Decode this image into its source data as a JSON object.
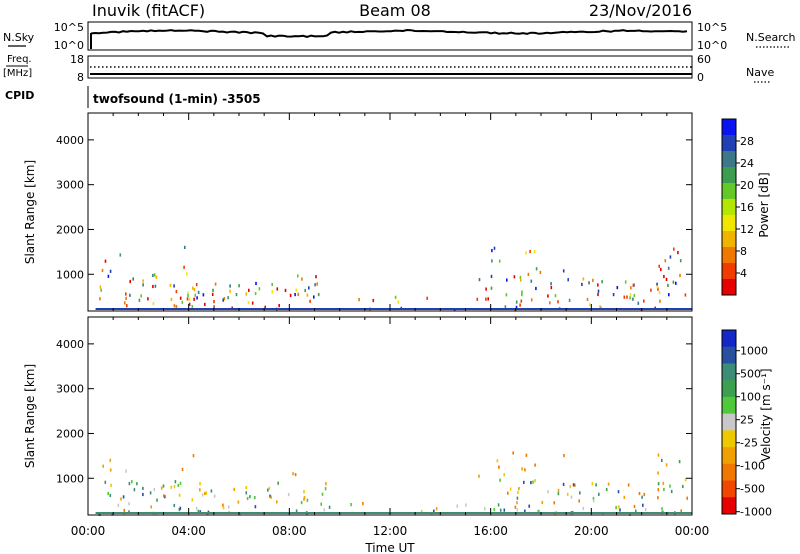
{
  "header": {
    "station": "Inuvik (fitACF)",
    "beam": "Beam 08",
    "date": "23/Nov/2016"
  },
  "side_labels": {
    "nsky": "N.Sky",
    "nsky_hi": "10^5",
    "nsky_lo": "10^0",
    "nsearch": "N.Search",
    "nsearch_hi": "10^5",
    "nsearch_lo": "10^0",
    "freq": "Freq.",
    "freq_unit": "[MHz]",
    "freq_hi": "18",
    "freq_lo": "8",
    "nave_hi": "60",
    "nave_lo": "0",
    "nave": "Nave",
    "cpid_label": "CPID",
    "cpid_value": "twofsound (1-min) -3505"
  },
  "chart_data": [
    {
      "type": "heatmap",
      "panel": "power",
      "ylabel": "Slant Range [km]",
      "x_ticks": [
        "00:00",
        "04:00",
        "08:00",
        "12:00",
        "16:00",
        "20:00",
        "00:00"
      ],
      "y_ticks": [
        1000,
        2000,
        3000,
        4000
      ],
      "ylim": [
        180,
        4600
      ],
      "xlim_hours": [
        0,
        24
      ],
      "colorbar": {
        "label": "Power [dB]",
        "ticks": [
          "4",
          "8",
          "12",
          "16",
          "20",
          "24",
          "28"
        ],
        "colors": [
          "#0a14f0",
          "#2040b4",
          "#3c7888",
          "#3c9c50",
          "#64c828",
          "#b4e600",
          "#f0e600",
          "#f0b400",
          "#f07800",
          "#f03c00",
          "#e60000"
        ]
      }
    },
    {
      "type": "heatmap",
      "panel": "velocity",
      "ylabel": "Slant Range [km]",
      "xlabel": "Time UT",
      "x_ticks": [
        "00:00",
        "04:00",
        "08:00",
        "12:00",
        "16:00",
        "20:00",
        "00:00"
      ],
      "y_ticks": [
        1000,
        2000,
        3000,
        4000
      ],
      "ylim": [
        180,
        4600
      ],
      "xlim_hours": [
        0,
        24
      ],
      "colorbar": {
        "label": "Velocity [m s⁻¹]",
        "ticks": [
          "1000",
          "500",
          "100",
          "25",
          "-25",
          "-100",
          "-500",
          "-1000"
        ],
        "colors": [
          "#1428c8",
          "#2850a0",
          "#3c8c78",
          "#3ca050",
          "#50c83c",
          "#c8c8c8",
          "#f0c800",
          "#f0a000",
          "#f07800",
          "#f04600",
          "#e60000"
        ]
      }
    }
  ]
}
